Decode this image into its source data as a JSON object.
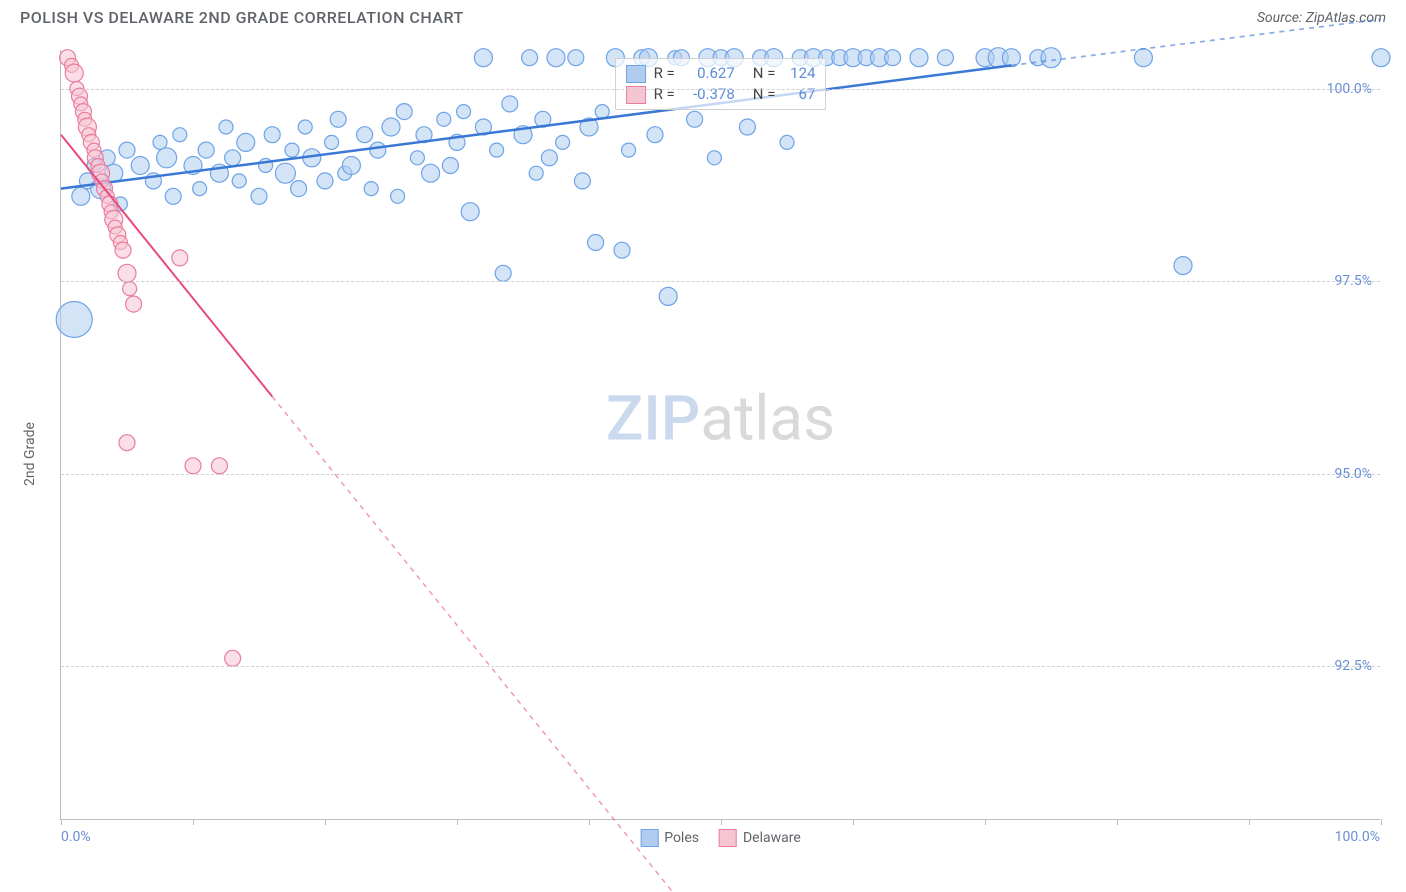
{
  "header": {
    "title": "POLISH VS DELAWARE 2ND GRADE CORRELATION CHART",
    "source": "Source: ZipAtlas.com"
  },
  "chart": {
    "type": "scatter",
    "y_axis_label": "2nd Grade",
    "background_color": "#ffffff",
    "grid_color": "#d0d0d0",
    "axis_color": "#bdbdbd",
    "tick_label_color": "#6b8fd6",
    "label_color": "#5f6368",
    "label_fontsize": 14,
    "title_fontsize": 16,
    "xlim": [
      0,
      100
    ],
    "ylim": [
      90.5,
      100.5
    ],
    "x_ticks": [
      0,
      10,
      20,
      30,
      40,
      50,
      60,
      70,
      80,
      90,
      100
    ],
    "x_tick_labels": {
      "0": "0.0%",
      "100": "100.0%"
    },
    "y_gridlines": [
      92.5,
      95.0,
      97.5,
      100.0
    ],
    "y_tick_labels": [
      "92.5%",
      "95.0%",
      "97.5%",
      "100.0%"
    ],
    "watermark": {
      "part1": "ZIP",
      "part2": "atlas"
    },
    "series": [
      {
        "name": "Poles",
        "color_fill": "#b0cdf0",
        "color_stroke": "#6da3e8",
        "fill_opacity": 0.55,
        "marker_radius_min": 7,
        "marker_radius_max": 18,
        "R": "0.627",
        "N": "124",
        "trend": {
          "x1": 0,
          "y1": 98.7,
          "x2": 72,
          "y2": 100.3,
          "dash_after_x": 72,
          "x3": 100,
          "y3": 100.9,
          "color": "#3a78d6",
          "width": 2.5
        },
        "points": [
          {
            "x": 1,
            "y": 97.0,
            "r": 18
          },
          {
            "x": 1.5,
            "y": 98.6,
            "r": 9
          },
          {
            "x": 2,
            "y": 98.8,
            "r": 8
          },
          {
            "x": 2.5,
            "y": 99.0,
            "r": 7
          },
          {
            "x": 3,
            "y": 98.7,
            "r": 10
          },
          {
            "x": 3.5,
            "y": 99.1,
            "r": 8
          },
          {
            "x": 4,
            "y": 98.9,
            "r": 9
          },
          {
            "x": 4.5,
            "y": 98.5,
            "r": 7
          },
          {
            "x": 5,
            "y": 99.2,
            "r": 8
          },
          {
            "x": 6,
            "y": 99.0,
            "r": 9
          },
          {
            "x": 7,
            "y": 98.8,
            "r": 8
          },
          {
            "x": 7.5,
            "y": 99.3,
            "r": 7
          },
          {
            "x": 8,
            "y": 99.1,
            "r": 10
          },
          {
            "x": 8.5,
            "y": 98.6,
            "r": 8
          },
          {
            "x": 9,
            "y": 99.4,
            "r": 7
          },
          {
            "x": 10,
            "y": 99.0,
            "r": 9
          },
          {
            "x": 10.5,
            "y": 98.7,
            "r": 7
          },
          {
            "x": 11,
            "y": 99.2,
            "r": 8
          },
          {
            "x": 12,
            "y": 98.9,
            "r": 9
          },
          {
            "x": 12.5,
            "y": 99.5,
            "r": 7
          },
          {
            "x": 13,
            "y": 99.1,
            "r": 8
          },
          {
            "x": 13.5,
            "y": 98.8,
            "r": 7
          },
          {
            "x": 14,
            "y": 99.3,
            "r": 9
          },
          {
            "x": 15,
            "y": 98.6,
            "r": 8
          },
          {
            "x": 15.5,
            "y": 99.0,
            "r": 7
          },
          {
            "x": 16,
            "y": 99.4,
            "r": 8
          },
          {
            "x": 17,
            "y": 98.9,
            "r": 10
          },
          {
            "x": 17.5,
            "y": 99.2,
            "r": 7
          },
          {
            "x": 18,
            "y": 98.7,
            "r": 8
          },
          {
            "x": 18.5,
            "y": 99.5,
            "r": 7
          },
          {
            "x": 19,
            "y": 99.1,
            "r": 9
          },
          {
            "x": 20,
            "y": 98.8,
            "r": 8
          },
          {
            "x": 20.5,
            "y": 99.3,
            "r": 7
          },
          {
            "x": 21,
            "y": 99.6,
            "r": 8
          },
          {
            "x": 21.5,
            "y": 98.9,
            "r": 7
          },
          {
            "x": 22,
            "y": 99.0,
            "r": 9
          },
          {
            "x": 23,
            "y": 99.4,
            "r": 8
          },
          {
            "x": 23.5,
            "y": 98.7,
            "r": 7
          },
          {
            "x": 24,
            "y": 99.2,
            "r": 8
          },
          {
            "x": 25,
            "y": 99.5,
            "r": 9
          },
          {
            "x": 25.5,
            "y": 98.6,
            "r": 7
          },
          {
            "x": 26,
            "y": 99.7,
            "r": 8
          },
          {
            "x": 27,
            "y": 99.1,
            "r": 7
          },
          {
            "x": 27.5,
            "y": 99.4,
            "r": 8
          },
          {
            "x": 28,
            "y": 98.9,
            "r": 9
          },
          {
            "x": 29,
            "y": 99.6,
            "r": 7
          },
          {
            "x": 29.5,
            "y": 99.0,
            "r": 8
          },
          {
            "x": 30,
            "y": 99.3,
            "r": 8
          },
          {
            "x": 30.5,
            "y": 99.7,
            "r": 7
          },
          {
            "x": 31,
            "y": 98.4,
            "r": 9
          },
          {
            "x": 32,
            "y": 99.5,
            "r": 8
          },
          {
            "x": 32,
            "y": 100.4,
            "r": 9
          },
          {
            "x": 33,
            "y": 99.2,
            "r": 7
          },
          {
            "x": 33.5,
            "y": 97.6,
            "r": 8
          },
          {
            "x": 34,
            "y": 99.8,
            "r": 8
          },
          {
            "x": 35,
            "y": 99.4,
            "r": 9
          },
          {
            "x": 35.5,
            "y": 100.4,
            "r": 8
          },
          {
            "x": 36,
            "y": 98.9,
            "r": 7
          },
          {
            "x": 36.5,
            "y": 99.6,
            "r": 8
          },
          {
            "x": 37,
            "y": 99.1,
            "r": 8
          },
          {
            "x": 37.5,
            "y": 100.4,
            "r": 9
          },
          {
            "x": 38,
            "y": 99.3,
            "r": 7
          },
          {
            "x": 39,
            "y": 100.4,
            "r": 8
          },
          {
            "x": 39.5,
            "y": 98.8,
            "r": 8
          },
          {
            "x": 40,
            "y": 99.5,
            "r": 9
          },
          {
            "x": 40.5,
            "y": 98.0,
            "r": 8
          },
          {
            "x": 41,
            "y": 99.7,
            "r": 7
          },
          {
            "x": 42,
            "y": 100.4,
            "r": 9
          },
          {
            "x": 42.5,
            "y": 97.9,
            "r": 8
          },
          {
            "x": 43,
            "y": 99.2,
            "r": 7
          },
          {
            "x": 44,
            "y": 100.4,
            "r": 8
          },
          {
            "x": 44.5,
            "y": 100.4,
            "r": 9
          },
          {
            "x": 45,
            "y": 99.4,
            "r": 8
          },
          {
            "x": 46,
            "y": 97.3,
            "r": 9
          },
          {
            "x": 46.5,
            "y": 100.4,
            "r": 7
          },
          {
            "x": 47,
            "y": 100.4,
            "r": 8
          },
          {
            "x": 48,
            "y": 99.6,
            "r": 8
          },
          {
            "x": 49,
            "y": 100.4,
            "r": 9
          },
          {
            "x": 49.5,
            "y": 99.1,
            "r": 7
          },
          {
            "x": 50,
            "y": 100.4,
            "r": 8
          },
          {
            "x": 51,
            "y": 100.4,
            "r": 9
          },
          {
            "x": 52,
            "y": 99.5,
            "r": 8
          },
          {
            "x": 53,
            "y": 100.4,
            "r": 8
          },
          {
            "x": 54,
            "y": 100.4,
            "r": 9
          },
          {
            "x": 55,
            "y": 99.3,
            "r": 7
          },
          {
            "x": 56,
            "y": 100.4,
            "r": 8
          },
          {
            "x": 57,
            "y": 100.4,
            "r": 9
          },
          {
            "x": 58,
            "y": 100.4,
            "r": 8
          },
          {
            "x": 59,
            "y": 100.4,
            "r": 8
          },
          {
            "x": 60,
            "y": 100.4,
            "r": 9
          },
          {
            "x": 61,
            "y": 100.4,
            "r": 8
          },
          {
            "x": 62,
            "y": 100.4,
            "r": 9
          },
          {
            "x": 63,
            "y": 100.4,
            "r": 8
          },
          {
            "x": 65,
            "y": 100.4,
            "r": 9
          },
          {
            "x": 67,
            "y": 100.4,
            "r": 8
          },
          {
            "x": 70,
            "y": 100.4,
            "r": 9
          },
          {
            "x": 71,
            "y": 100.4,
            "r": 10
          },
          {
            "x": 72,
            "y": 100.4,
            "r": 9
          },
          {
            "x": 74,
            "y": 100.4,
            "r": 8
          },
          {
            "x": 75,
            "y": 100.4,
            "r": 10
          },
          {
            "x": 82,
            "y": 100.4,
            "r": 9
          },
          {
            "x": 85,
            "y": 97.7,
            "r": 9
          },
          {
            "x": 100,
            "y": 100.4,
            "r": 9
          }
        ]
      },
      {
        "name": "Delaware",
        "color_fill": "#f5c5d2",
        "color_stroke": "#ea7ca0",
        "fill_opacity": 0.55,
        "marker_radius_min": 7,
        "marker_radius_max": 14,
        "R": "-0.378",
        "N": "67",
        "trend": {
          "x1": 0,
          "y1": 99.4,
          "x2": 16,
          "y2": 96.0,
          "dash_after_x": 16,
          "x3": 49,
          "y3": 89.0,
          "color": "#e74a7b",
          "width": 2
        },
        "points": [
          {
            "x": 0.5,
            "y": 100.4,
            "r": 8
          },
          {
            "x": 0.8,
            "y": 100.3,
            "r": 7
          },
          {
            "x": 1,
            "y": 100.2,
            "r": 9
          },
          {
            "x": 1.2,
            "y": 100.0,
            "r": 7
          },
          {
            "x": 1.4,
            "y": 99.9,
            "r": 8
          },
          {
            "x": 1.5,
            "y": 99.8,
            "r": 7
          },
          {
            "x": 1.7,
            "y": 99.7,
            "r": 8
          },
          {
            "x": 1.8,
            "y": 99.6,
            "r": 7
          },
          {
            "x": 2,
            "y": 99.5,
            "r": 9
          },
          {
            "x": 2.1,
            "y": 99.4,
            "r": 7
          },
          {
            "x": 2.3,
            "y": 99.3,
            "r": 8
          },
          {
            "x": 2.5,
            "y": 99.2,
            "r": 7
          },
          {
            "x": 2.6,
            "y": 99.1,
            "r": 8
          },
          {
            "x": 2.8,
            "y": 99.0,
            "r": 7
          },
          {
            "x": 3,
            "y": 98.9,
            "r": 9
          },
          {
            "x": 3.1,
            "y": 98.8,
            "r": 7
          },
          {
            "x": 3.3,
            "y": 98.7,
            "r": 8
          },
          {
            "x": 3.5,
            "y": 98.6,
            "r": 7
          },
          {
            "x": 3.7,
            "y": 98.5,
            "r": 8
          },
          {
            "x": 3.8,
            "y": 98.4,
            "r": 7
          },
          {
            "x": 4,
            "y": 98.3,
            "r": 9
          },
          {
            "x": 4.1,
            "y": 98.2,
            "r": 7
          },
          {
            "x": 4.3,
            "y": 98.1,
            "r": 8
          },
          {
            "x": 4.5,
            "y": 98.0,
            "r": 7
          },
          {
            "x": 4.7,
            "y": 97.9,
            "r": 8
          },
          {
            "x": 5,
            "y": 97.6,
            "r": 9
          },
          {
            "x": 5.2,
            "y": 97.4,
            "r": 7
          },
          {
            "x": 5.5,
            "y": 97.2,
            "r": 8
          },
          {
            "x": 5,
            "y": 95.4,
            "r": 8
          },
          {
            "x": 9,
            "y": 97.8,
            "r": 8
          },
          {
            "x": 10,
            "y": 95.1,
            "r": 8
          },
          {
            "x": 12,
            "y": 95.1,
            "r": 8
          },
          {
            "x": 13,
            "y": 92.6,
            "r": 8
          }
        ]
      }
    ],
    "bottom_legend": [
      {
        "label": "Poles",
        "fill": "#b0cdf0",
        "stroke": "#6da3e8"
      },
      {
        "label": "Delaware",
        "fill": "#f5c5d2",
        "stroke": "#ea7ca0"
      }
    ],
    "stats_box": {
      "rows": [
        {
          "swatch_fill": "#b0cdf0",
          "swatch_stroke": "#6da3e8",
          "R_label": "R =",
          "R_val": "0.627",
          "N_label": "N =",
          "N_val": "124",
          "val_color": "#5a8bd8"
        },
        {
          "swatch_fill": "#f5c5d2",
          "swatch_stroke": "#ea7ca0",
          "R_label": "R =",
          "R_val": "-0.378",
          "N_label": "N =",
          "N_val": "67",
          "val_color": "#5a8bd8"
        }
      ]
    }
  }
}
